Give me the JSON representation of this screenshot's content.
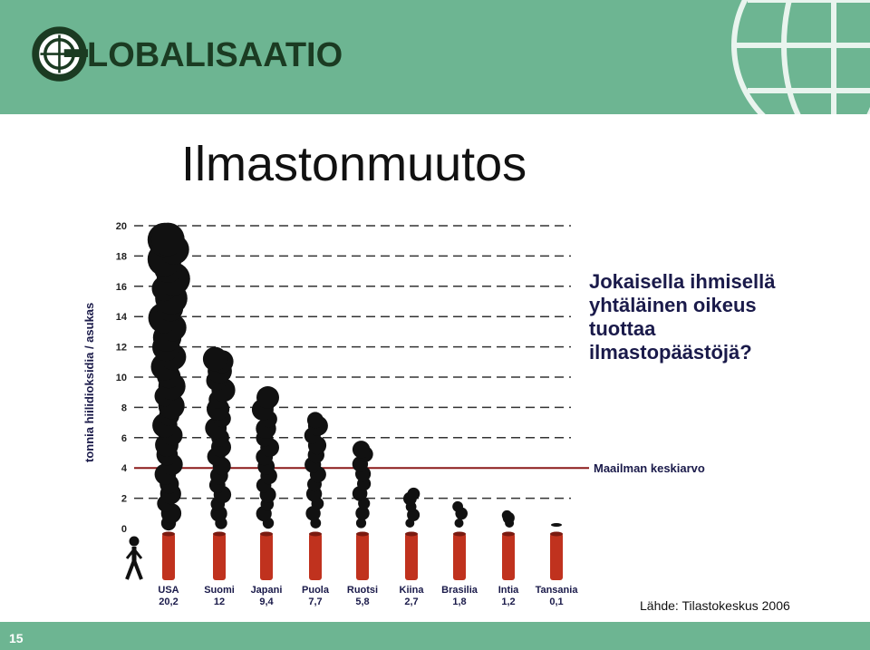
{
  "header": {
    "logo_text": "LOBALISAATIO",
    "logo_icon": "globe-g-icon",
    "colors": {
      "band": "#6db592",
      "logo": "#1b3b22"
    }
  },
  "title": "Ilmastonmuutos",
  "question": [
    "Jokaisella ihmisellä",
    "yhtäläinen oikeus",
    "tuottaa",
    "ilmastopäästöjä?"
  ],
  "source": "Lähde: Tilastokeskus 2006",
  "page_number": "15",
  "chart_data": {
    "type": "bar",
    "ylabel": "tonnia hiilidioksidia / asukas",
    "ylim": [
      0,
      20
    ],
    "yticks": [
      "0",
      "2",
      "4",
      "6",
      "8",
      "10",
      "12",
      "14",
      "16",
      "18",
      "20"
    ],
    "categories": [
      "USA",
      "Suomi",
      "Japani",
      "Puola",
      "Ruotsi",
      "Kiina",
      "Brasilia",
      "Intia",
      "Tansania"
    ],
    "value_labels": [
      "20,2",
      "12",
      "9,4",
      "7,7",
      "5,8",
      "2,7",
      "1,8",
      "1,2",
      "0,1"
    ],
    "values": [
      20.2,
      12,
      9.4,
      7.7,
      5.8,
      2.7,
      1.8,
      1.2,
      0.1
    ],
    "reference_line": {
      "value": 4,
      "label": "Maailman keskiarvo",
      "color": "#8b1a1a"
    },
    "grid": "dashed",
    "marks": "smoke-plumes",
    "colors": {
      "plume": "#111111",
      "chimney": "#c0321e",
      "grid": "#333333"
    }
  }
}
